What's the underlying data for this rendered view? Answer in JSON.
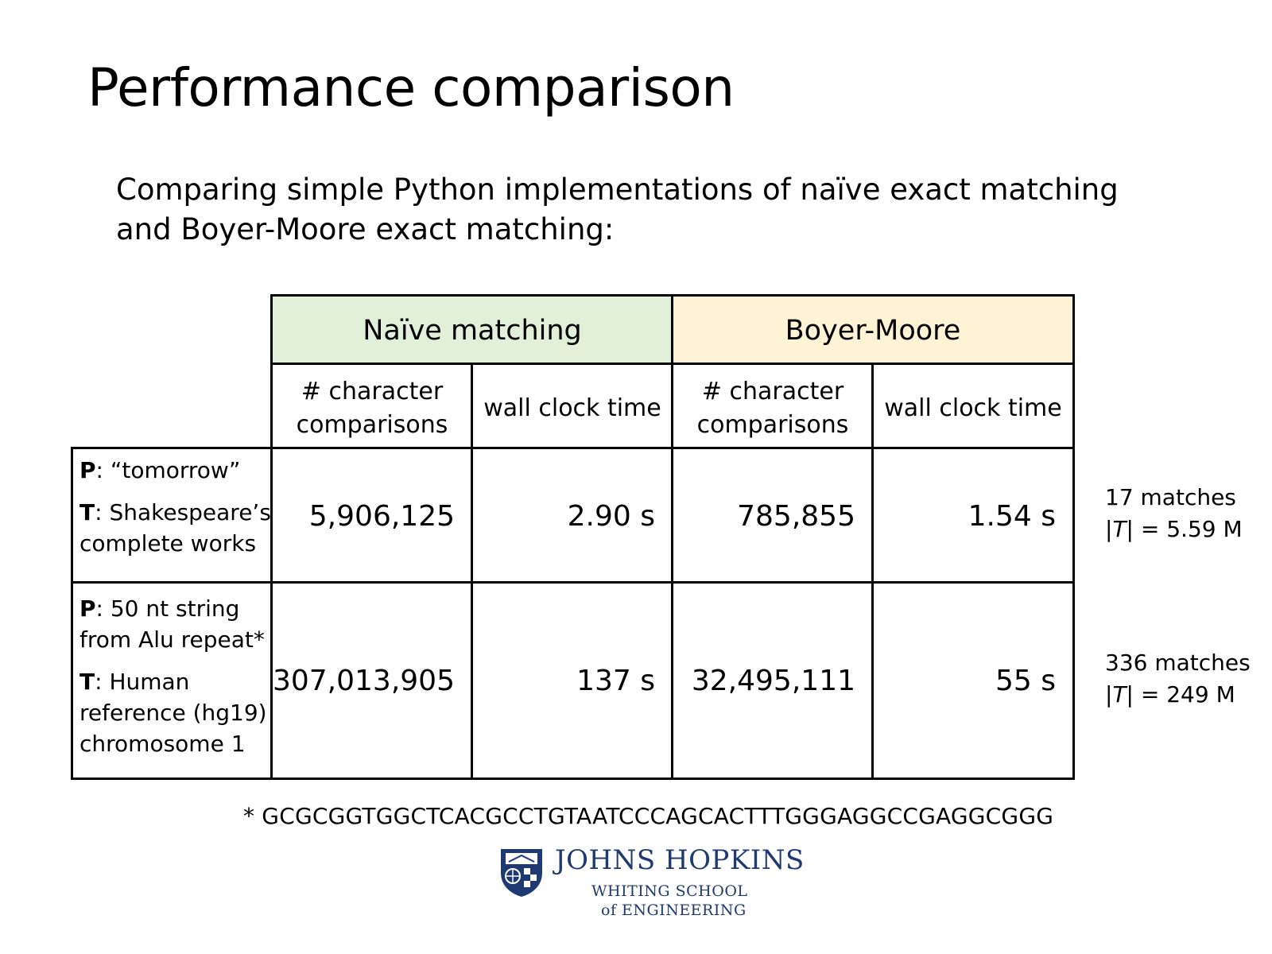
{
  "slide": {
    "title": "Performance comparison",
    "subtitle": "Comparing simple Python implementations of naïve exact matching and Boyer-Moore exact matching:"
  },
  "table": {
    "groups": [
      {
        "label": "Naïve matching",
        "color": "#e2efd9"
      },
      {
        "label": "Boyer-Moore",
        "color": "#fff3d6"
      }
    ],
    "columns": [
      "# character comparisons",
      "wall clock time",
      "# character comparisons",
      "wall clock time"
    ],
    "rows": [
      {
        "p_key": "P",
        "p_text": ": “tomorrow”",
        "t_key": "T",
        "t_text": ": Shakespeare’s complete works",
        "values": [
          "5,906,125",
          "2.90 s",
          "785,855",
          "1.54 s"
        ],
        "note_matches": "17 matches",
        "note_size_prefix": "|",
        "note_size_var": "T",
        "note_size_suffix": "| = 5.59 M"
      },
      {
        "p_key": "P",
        "p_text": ": 50 nt string from Alu repeat*",
        "t_key": "T",
        "t_text": ": Human reference (hg19) chromosome 1",
        "values": [
          "307,013,905",
          "137 s",
          "32,495,111",
          "55 s"
        ],
        "note_matches": "336 matches",
        "note_size_prefix": "|",
        "note_size_var": "T",
        "note_size_suffix": "| = 249 M"
      }
    ]
  },
  "footnote": "* GCGCGGTGGCTCACGCCTGTAATCCCAGCACTTTGGGAGGCCGAGGCGGG",
  "logo": {
    "main": "JOHNS HOPKINS",
    "sub1": "WHITING SCHOOL",
    "sub2": "of ENGINEERING",
    "color": "#1f3a73"
  }
}
